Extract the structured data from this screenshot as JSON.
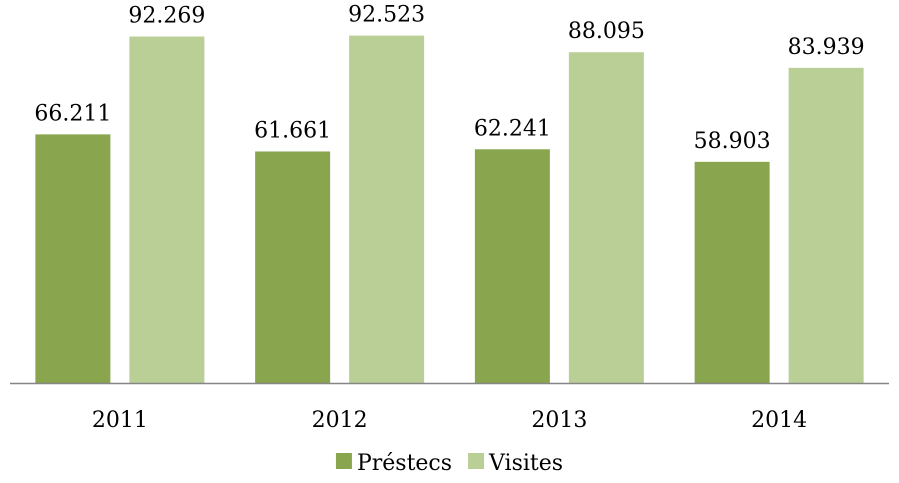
{
  "chart_data": {
    "type": "bar",
    "categories": [
      "2011",
      "2012",
      "2013",
      "2014"
    ],
    "series": [
      {
        "name": "Préstecs",
        "values": [
          66211,
          61661,
          62241,
          58903
        ],
        "labels": [
          "66.211",
          "61.661",
          "62.241",
          "58.903"
        ],
        "color": "#89A54E"
      },
      {
        "name": "Visites",
        "values": [
          92269,
          92523,
          88095,
          83939
        ],
        "labels": [
          "92.269",
          "92.523",
          "88.095",
          "83.939"
        ],
        "color": "#BACF96"
      }
    ],
    "ylim": [
      0,
      102000
    ],
    "grid": false,
    "legend_position": "bottom",
    "axis_color": "#868686"
  }
}
